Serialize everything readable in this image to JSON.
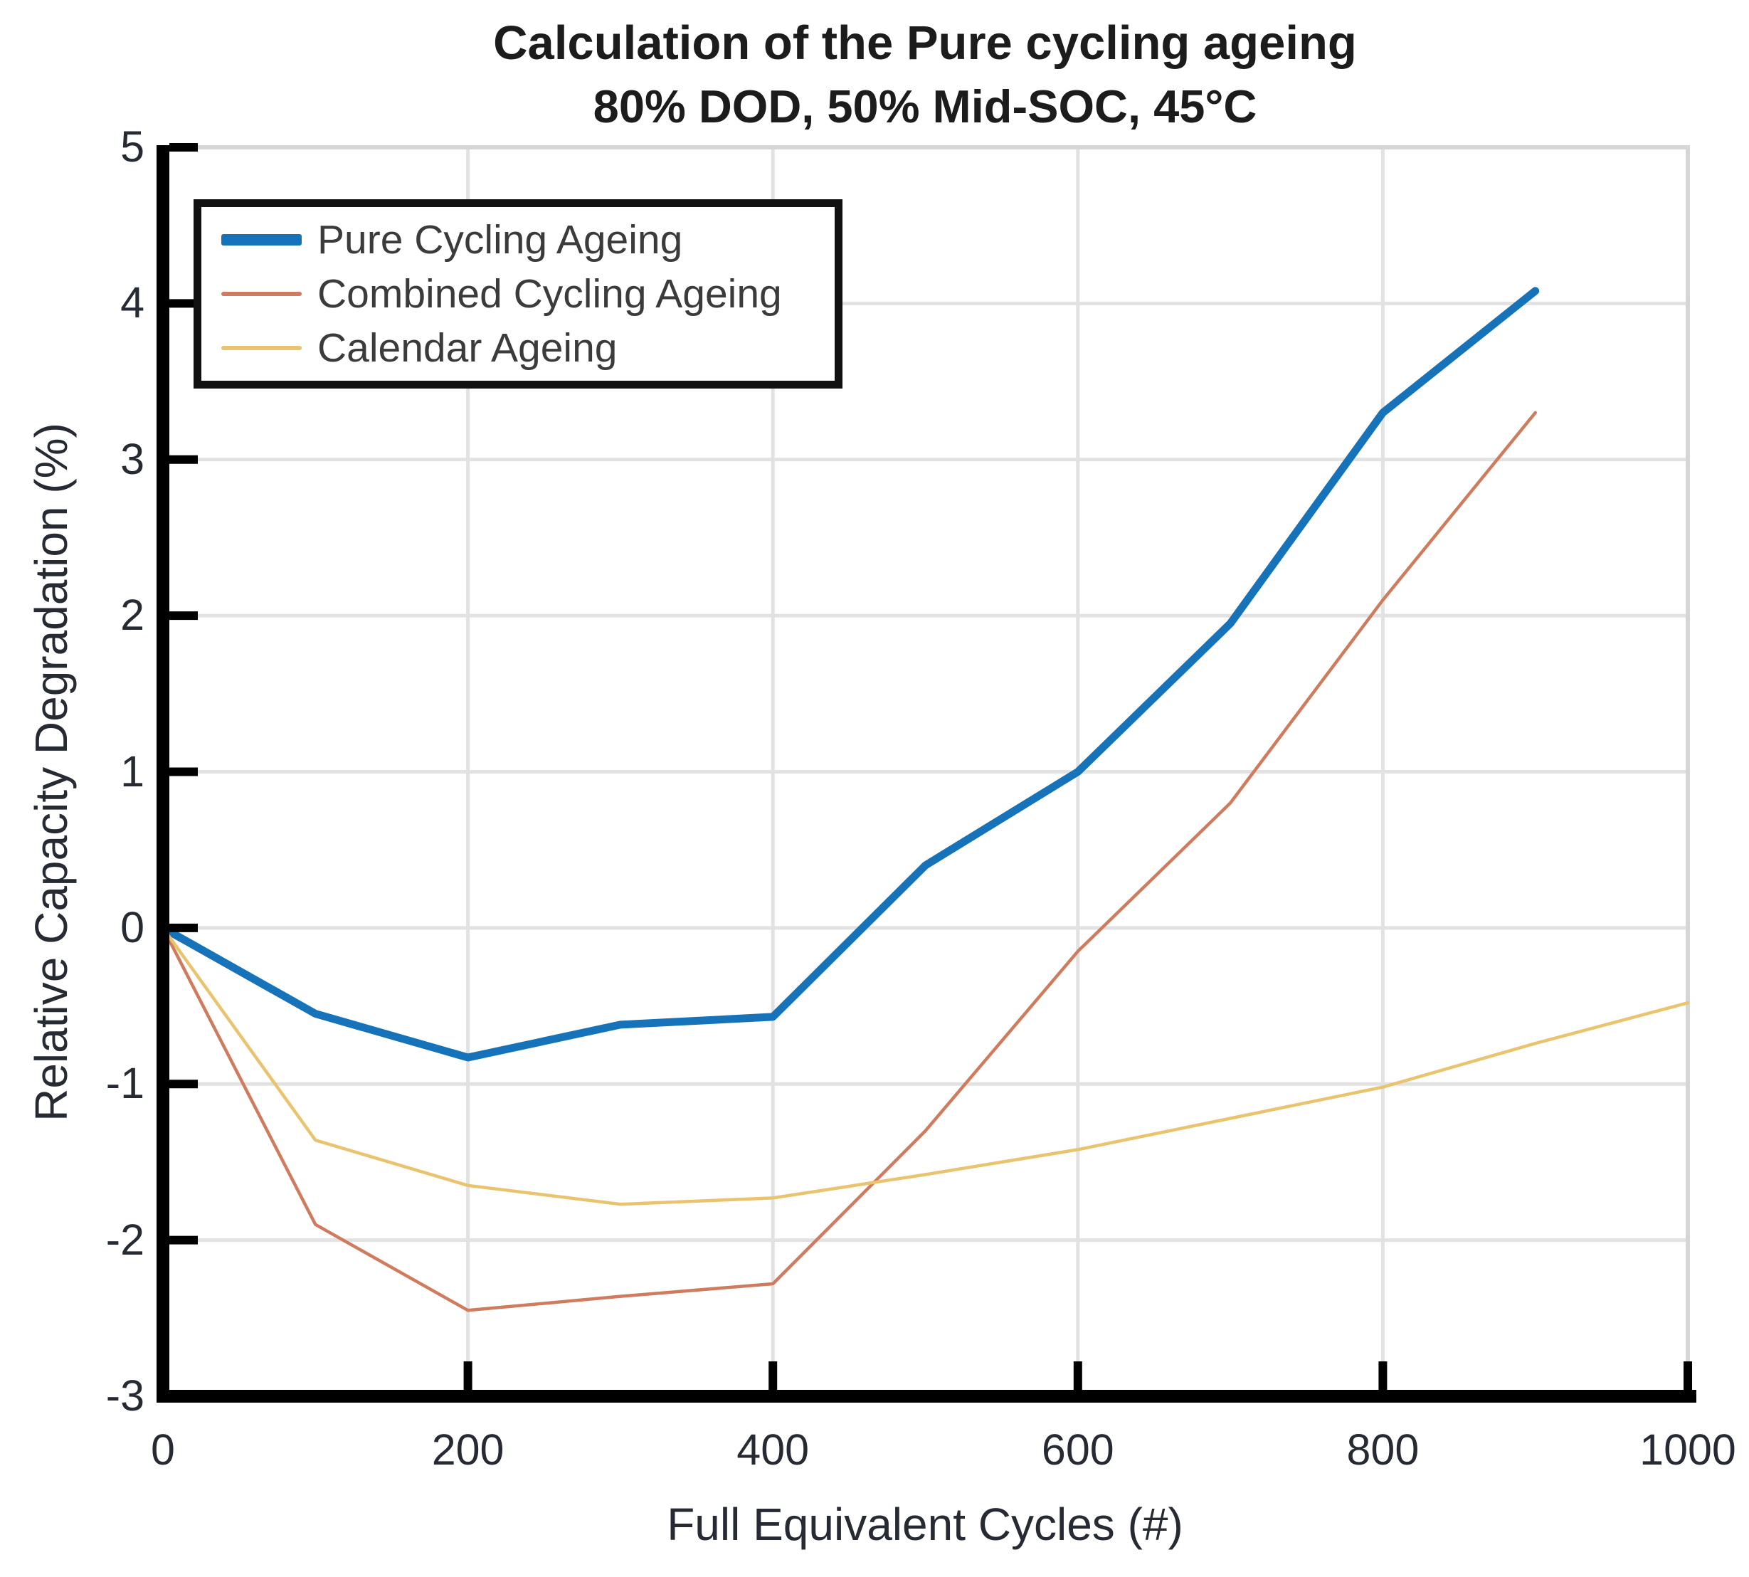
{
  "chart_data": {
    "type": "line",
    "title": "Calculation of the Pure cycling ageing",
    "subtitle": "80% DOD, 50% Mid-SOC, 45°C",
    "xlabel": "Full Equivalent Cycles (#)",
    "ylabel": "Relative Capacity Degradation (%)",
    "xlim": [
      0,
      1000
    ],
    "ylim": [
      -3,
      5
    ],
    "xticks": [
      0,
      200,
      400,
      600,
      800,
      1000
    ],
    "yticks": [
      -3,
      -2,
      -1,
      0,
      1,
      2,
      3,
      4,
      5
    ],
    "grid": true,
    "legend_position": "top-left",
    "series": [
      {
        "name": "Pure Cycling Ageing",
        "color": "#1673b9",
        "line_width": 11,
        "x": [
          0,
          100,
          200,
          300,
          400,
          500,
          600,
          700,
          800,
          900
        ],
        "y": [
          0,
          -0.55,
          -0.83,
          -0.62,
          -0.57,
          0.4,
          1.0,
          1.95,
          3.3,
          4.08
        ]
      },
      {
        "name": "Combined Cycling Ageing",
        "color": "#cf7b5e",
        "line_width": 4.5,
        "x": [
          0,
          100,
          200,
          300,
          400,
          500,
          600,
          700,
          800,
          900
        ],
        "y": [
          0,
          -1.9,
          -2.45,
          -2.36,
          -2.28,
          -1.3,
          -0.15,
          0.8,
          2.1,
          3.3
        ]
      },
      {
        "name": "Calendar Ageing",
        "color": "#e9c36e",
        "line_width": 4.5,
        "x": [
          0,
          100,
          200,
          300,
          400,
          500,
          600,
          700,
          800,
          900,
          1000
        ],
        "y": [
          0,
          -1.36,
          -1.65,
          -1.77,
          -1.73,
          -1.58,
          -1.42,
          -1.22,
          -1.02,
          -0.74,
          -0.48
        ]
      }
    ],
    "palette": {
      "background": "#ffffff",
      "grid": "#e2e2e2",
      "frame": "#d6d6d6",
      "axis": "#000000",
      "tick_text": "#262b33",
      "title_text": "#1c1c1c",
      "legend_text": "#3b3b3b",
      "legend_border": "#111111"
    }
  }
}
